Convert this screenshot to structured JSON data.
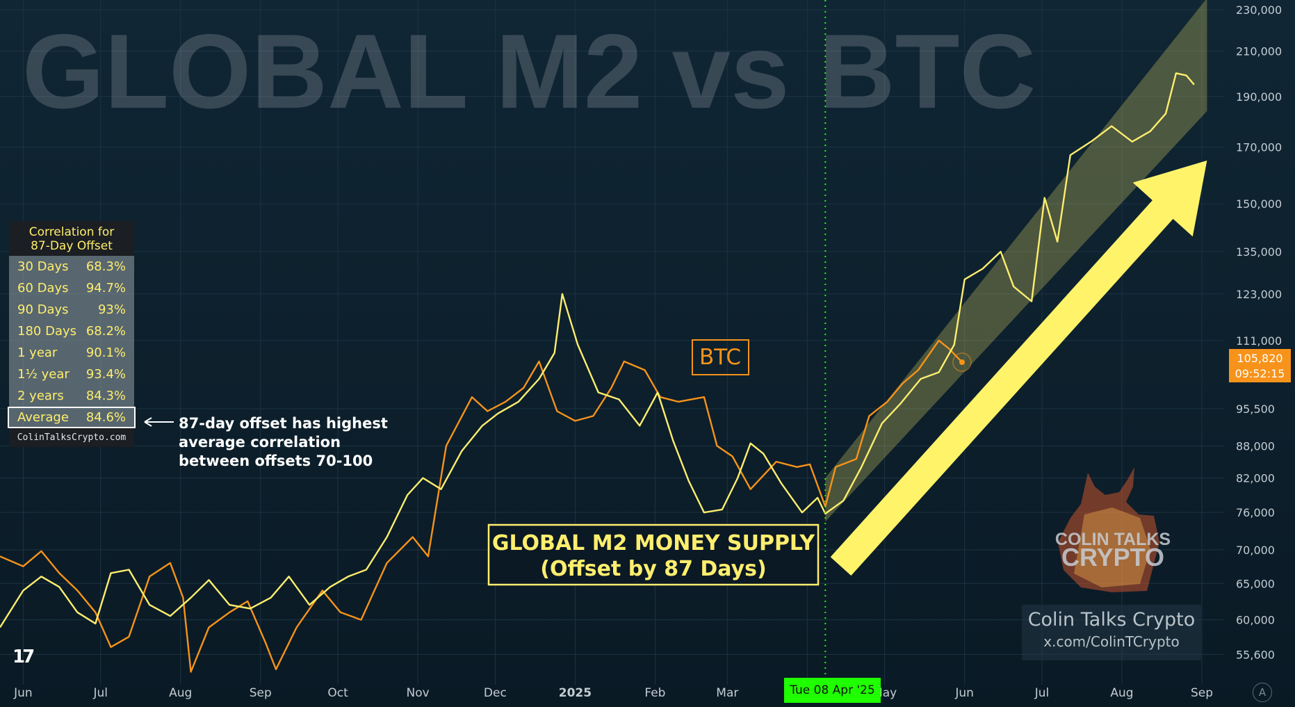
{
  "title": "GLOBAL M2 vs BTC",
  "correlation_table": {
    "header_line1": "Correlation for",
    "header_line2": "87-Day Offset",
    "rows": [
      {
        "label": "30 Days",
        "value": "68.3%"
      },
      {
        "label": "60 Days",
        "value": "94.7%"
      },
      {
        "label": "90 Days",
        "value": "93%"
      },
      {
        "label": "180 Days",
        "value": "68.2%"
      },
      {
        "label": "1 year",
        "value": "90.1%"
      },
      {
        "label": "1½ year",
        "value": "93.4%"
      },
      {
        "label": "2 years",
        "value": "84.3%"
      }
    ],
    "average": {
      "label": "Average",
      "value": "84.6%"
    },
    "footer": "ColinTalksCrypto.com"
  },
  "annotation_note": {
    "line1": "87-day offset has highest",
    "line2": "average correlation",
    "line3": "between offsets 70-100"
  },
  "btc_label": "BTC",
  "m2_label": {
    "line1": "GLOBAL M2 MONEY SUPPLY",
    "line2": "(Offset by 87 Days)"
  },
  "price_tag": {
    "price": "105,820",
    "countdown": "09:52:15"
  },
  "crosshair_date": "Tue 08 Apr '25",
  "brand": {
    "logo_line1": "COLIN TALKS",
    "logo_line2": "CRYPTO",
    "name": "Colin Talks Crypto",
    "handle": "x.com/ColinTCrypto"
  },
  "tradingview_logo": "17",
  "auto_scale_button": "A",
  "colors": {
    "background": "#0d1f2c",
    "btc": "#f7931a",
    "m2": "#ffee6e",
    "channel": "#ffee6e",
    "arrow": "#fff36a",
    "crosshair": "#1fff00"
  },
  "chart_data": {
    "type": "line",
    "scale": "log",
    "ylim": [
      52000,
      235000
    ],
    "y_ticks": [
      "230,000",
      "210,000",
      "190,000",
      "170,000",
      "150,000",
      "135,000",
      "123,000",
      "111,000",
      "95,500",
      "88,000",
      "82,000",
      "76,000",
      "70,000",
      "65,000",
      "60,000",
      "55,600"
    ],
    "x_ticks": [
      "Jun",
      "Jul",
      "Aug",
      "Sep",
      "Oct",
      "Nov",
      "Dec",
      "2025",
      "Feb",
      "Mar",
      "Apr",
      "May",
      "Jun",
      "Jul",
      "Aug",
      "Sep"
    ],
    "x_tick_dates": [
      "2024-06-01",
      "2024-07-01",
      "2024-08-01",
      "2024-09-01",
      "2024-10-01",
      "2024-11-01",
      "2024-12-01",
      "2025-01-01",
      "2025-02-01",
      "2025-03-01",
      "2025-04-01",
      "2025-05-01",
      "2025-06-01",
      "2025-07-01",
      "2025-08-01",
      "2025-09-01"
    ],
    "x_range": [
      "2024-05-23",
      "2025-09-08"
    ],
    "crosshair": "2025-04-08",
    "series": [
      {
        "name": "BTC",
        "color": "#f7931a",
        "points": [
          [
            "2024-05-23",
            69000
          ],
          [
            "2024-06-01",
            67500
          ],
          [
            "2024-06-08",
            69800
          ],
          [
            "2024-06-15",
            66500
          ],
          [
            "2024-06-22",
            64000
          ],
          [
            "2024-06-29",
            61000
          ],
          [
            "2024-07-05",
            56500
          ],
          [
            "2024-07-12",
            57800
          ],
          [
            "2024-07-20",
            66000
          ],
          [
            "2024-07-28",
            68000
          ],
          [
            "2024-08-02",
            63000
          ],
          [
            "2024-08-05",
            53500
          ],
          [
            "2024-08-12",
            59000
          ],
          [
            "2024-08-20",
            61000
          ],
          [
            "2024-08-27",
            62500
          ],
          [
            "2024-09-03",
            57000
          ],
          [
            "2024-09-07",
            53800
          ],
          [
            "2024-09-15",
            59000
          ],
          [
            "2024-09-25",
            64000
          ],
          [
            "2024-10-02",
            61000
          ],
          [
            "2024-10-10",
            60000
          ],
          [
            "2024-10-20",
            68000
          ],
          [
            "2024-10-30",
            72000
          ],
          [
            "2024-11-05",
            69000
          ],
          [
            "2024-11-12",
            88000
          ],
          [
            "2024-11-22",
            98000
          ],
          [
            "2024-11-28",
            95000
          ],
          [
            "2024-12-05",
            97000
          ],
          [
            "2024-12-12",
            100000
          ],
          [
            "2024-12-18",
            106000
          ],
          [
            "2024-12-25",
            95000
          ],
          [
            "2025-01-01",
            93000
          ],
          [
            "2025-01-08",
            94000
          ],
          [
            "2025-01-15",
            100000
          ],
          [
            "2025-01-20",
            106000
          ],
          [
            "2025-01-28",
            104000
          ],
          [
            "2025-02-03",
            98000
          ],
          [
            "2025-02-10",
            97000
          ],
          [
            "2025-02-20",
            98000
          ],
          [
            "2025-02-25",
            88000
          ],
          [
            "2025-03-03",
            86000
          ],
          [
            "2025-03-10",
            80000
          ],
          [
            "2025-03-20",
            85000
          ],
          [
            "2025-03-28",
            84000
          ],
          [
            "2025-04-02",
            84500
          ],
          [
            "2025-04-08",
            77000
          ],
          [
            "2025-04-12",
            84000
          ],
          [
            "2025-04-20",
            85500
          ],
          [
            "2025-04-25",
            94000
          ],
          [
            "2025-05-02",
            97000
          ],
          [
            "2025-05-08",
            101000
          ],
          [
            "2025-05-14",
            104000
          ],
          [
            "2025-05-22",
            111000
          ],
          [
            "2025-05-26",
            109000
          ],
          [
            "2025-05-31",
            105820
          ]
        ]
      },
      {
        "name": "GLOBAL M2 MONEY SUPPLY (Offset by 87 Days)",
        "color": "#ffee6e",
        "points": [
          [
            "2024-05-23",
            59000
          ],
          [
            "2024-06-01",
            64000
          ],
          [
            "2024-06-08",
            66000
          ],
          [
            "2024-06-15",
            64500
          ],
          [
            "2024-06-22",
            61000
          ],
          [
            "2024-06-29",
            59500
          ],
          [
            "2024-07-05",
            66500
          ],
          [
            "2024-07-12",
            67000
          ],
          [
            "2024-07-20",
            62000
          ],
          [
            "2024-07-28",
            60500
          ],
          [
            "2024-08-05",
            63000
          ],
          [
            "2024-08-12",
            65500
          ],
          [
            "2024-08-20",
            62000
          ],
          [
            "2024-08-28",
            61500
          ],
          [
            "2024-09-05",
            63000
          ],
          [
            "2024-09-12",
            66000
          ],
          [
            "2024-09-20",
            62000
          ],
          [
            "2024-09-28",
            64500
          ],
          [
            "2024-10-05",
            66000
          ],
          [
            "2024-10-12",
            67000
          ],
          [
            "2024-10-20",
            72000
          ],
          [
            "2024-10-28",
            79000
          ],
          [
            "2024-11-03",
            82000
          ],
          [
            "2024-11-10",
            80000
          ],
          [
            "2024-11-18",
            87000
          ],
          [
            "2024-11-26",
            92000
          ],
          [
            "2024-12-02",
            94500
          ],
          [
            "2024-12-10",
            97000
          ],
          [
            "2024-12-18",
            102000
          ],
          [
            "2024-12-24",
            108000
          ],
          [
            "2024-12-27",
            123000
          ],
          [
            "2025-01-02",
            110000
          ],
          [
            "2025-01-10",
            99000
          ],
          [
            "2025-01-18",
            97500
          ],
          [
            "2025-01-26",
            92000
          ],
          [
            "2025-02-02",
            99000
          ],
          [
            "2025-02-08",
            89000
          ],
          [
            "2025-02-14",
            81500
          ],
          [
            "2025-02-20",
            76000
          ],
          [
            "2025-02-27",
            76500
          ],
          [
            "2025-03-05",
            82000
          ],
          [
            "2025-03-10",
            88500
          ],
          [
            "2025-03-15",
            86500
          ],
          [
            "2025-03-22",
            81000
          ],
          [
            "2025-03-30",
            76000
          ],
          [
            "2025-04-05",
            78500
          ],
          [
            "2025-04-08",
            75800
          ],
          [
            "2025-04-15",
            78000
          ],
          [
            "2025-04-22",
            84000
          ],
          [
            "2025-04-30",
            92500
          ],
          [
            "2025-05-07",
            96500
          ],
          [
            "2025-05-15",
            102000
          ],
          [
            "2025-05-22",
            103500
          ],
          [
            "2025-05-28",
            110000
          ],
          [
            "2025-06-01",
            127000
          ],
          [
            "2025-06-08",
            130000
          ],
          [
            "2025-06-15",
            135000
          ],
          [
            "2025-06-20",
            125000
          ],
          [
            "2025-06-27",
            121000
          ],
          [
            "2025-07-02",
            152000
          ],
          [
            "2025-07-07",
            138000
          ],
          [
            "2025-07-12",
            167000
          ],
          [
            "2025-07-20",
            172000
          ],
          [
            "2025-07-28",
            178000
          ],
          [
            "2025-08-05",
            172000
          ],
          [
            "2025-08-12",
            176000
          ],
          [
            "2025-08-18",
            183000
          ],
          [
            "2025-08-22",
            200000
          ],
          [
            "2025-08-26",
            199000
          ],
          [
            "2025-08-29",
            195000
          ]
        ]
      }
    ],
    "channel": {
      "upper": [
        [
          "2025-04-08",
          82000
        ],
        [
          "2025-09-03",
          236000
        ]
      ],
      "lower": [
        [
          "2025-04-08",
          74500
        ],
        [
          "2025-09-03",
          184000
        ]
      ]
    },
    "arrow": {
      "start": [
        "2025-04-14",
        67500
      ],
      "end": [
        "2025-09-03",
        165000
      ]
    },
    "last_price_marker": [
      "2025-05-31",
      105820
    ]
  }
}
